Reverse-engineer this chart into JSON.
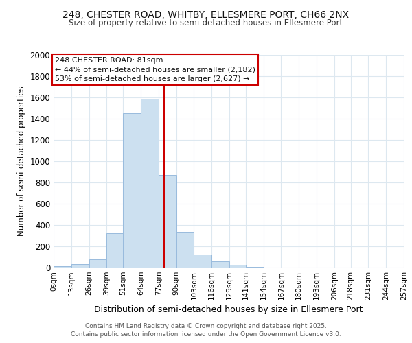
{
  "title1": "248, CHESTER ROAD, WHITBY, ELLESMERE PORT, CH66 2NX",
  "title2": "Size of property relative to semi-detached houses in Ellesmere Port",
  "xlabel": "Distribution of semi-detached houses by size in Ellesmere Port",
  "ylabel": "Number of semi-detached properties",
  "annotation_line1": "248 CHESTER ROAD: 81sqm",
  "annotation_line2": "← 44% of semi-detached houses are smaller (2,182)",
  "annotation_line3": "53% of semi-detached houses are larger (2,627) →",
  "footer1": "Contains HM Land Registry data © Crown copyright and database right 2025.",
  "footer2": "Contains public sector information licensed under the Open Government Licence v3.0.",
  "property_value": 81,
  "bin_edges": [
    0,
    13,
    26,
    39,
    51,
    64,
    77,
    90,
    103,
    116,
    129,
    141,
    154,
    167,
    180,
    193,
    206,
    218,
    231,
    244,
    257
  ],
  "bin_labels": [
    "0sqm",
    "13sqm",
    "26sqm",
    "39sqm",
    "51sqm",
    "64sqm",
    "77sqm",
    "90sqm",
    "103sqm",
    "116sqm",
    "129sqm",
    "141sqm",
    "154sqm",
    "167sqm",
    "180sqm",
    "193sqm",
    "206sqm",
    "218sqm",
    "231sqm",
    "244sqm",
    "257sqm"
  ],
  "counts": [
    10,
    30,
    75,
    320,
    1450,
    1590,
    870,
    335,
    120,
    55,
    25,
    5,
    0,
    0,
    0,
    0,
    0,
    0,
    0,
    0
  ],
  "bar_color": "#cce0f0",
  "bar_edge_color": "#99bbdd",
  "vline_color": "#cc0000",
  "vline_x": 81,
  "annotation_box_color": "#cc0000",
  "background_color": "#ffffff",
  "grid_color": "#dde8f0",
  "ylim": [
    0,
    2000
  ],
  "yticks": [
    0,
    200,
    400,
    600,
    800,
    1000,
    1200,
    1400,
    1600,
    1800,
    2000
  ]
}
